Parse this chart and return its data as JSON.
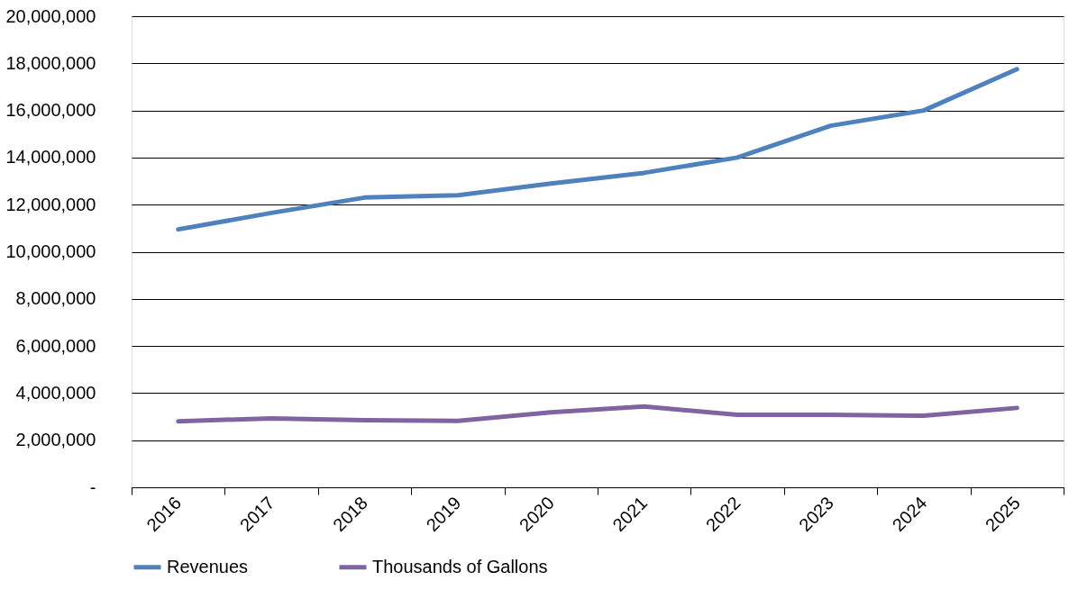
{
  "chart_data": {
    "type": "line",
    "categories": [
      "2016",
      "2017",
      "2018",
      "2019",
      "2020",
      "2021",
      "2022",
      "2023",
      "2024",
      "2025"
    ],
    "series": [
      {
        "name": "Revenues",
        "color": "#4f81bd",
        "values": [
          10950000,
          11650000,
          12300000,
          12400000,
          12900000,
          13350000,
          14000000,
          15350000,
          16000000,
          17750000
        ]
      },
      {
        "name": "Thousands of Gallons",
        "color": "#8064a2",
        "values": [
          2800000,
          2930000,
          2850000,
          2820000,
          3180000,
          3430000,
          3080000,
          3080000,
          3040000,
          3370000
        ]
      }
    ],
    "ylim": [
      0,
      20000000
    ],
    "yticks": [
      {
        "value": 0,
        "label": "-"
      },
      {
        "value": 2000000,
        "label": "2,000,000"
      },
      {
        "value": 4000000,
        "label": "4,000,000"
      },
      {
        "value": 6000000,
        "label": "6,000,000"
      },
      {
        "value": 8000000,
        "label": "8,000,000"
      },
      {
        "value": 10000000,
        "label": "10,000,000"
      },
      {
        "value": 12000000,
        "label": "12,000,000"
      },
      {
        "value": 14000000,
        "label": "14,000,000"
      },
      {
        "value": 16000000,
        "label": "16,000,000"
      },
      {
        "value": 18000000,
        "label": "18,000,000"
      },
      {
        "value": 20000000,
        "label": "20,000,000"
      }
    ],
    "grid": "y",
    "legend": "bottom",
    "marker": "none",
    "line_style": "solid"
  }
}
